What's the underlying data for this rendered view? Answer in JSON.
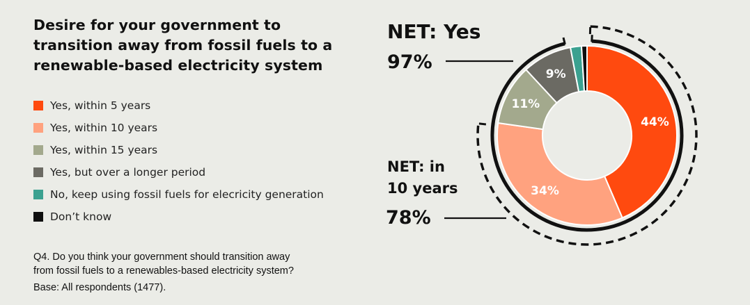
{
  "title_lines": [
    "Desire for your government to",
    "transition away from fossil fuels to a",
    "renewable-based electricity system"
  ],
  "legend": [
    {
      "label": "Yes, within 5 years",
      "color": "#ff4a0f"
    },
    {
      "label": "Yes, within 10 years",
      "color": "#ffa27f"
    },
    {
      "label": "Yes, within 15 years",
      "color": "#a3a98d"
    },
    {
      "label": "Yes, but over a longer period",
      "color": "#6b6a63"
    },
    {
      "label": "No, keep using fossil fuels for elecricity generation",
      "color": "#3ba190"
    },
    {
      "label": "Don’t know",
      "color": "#0f0f0f"
    }
  ],
  "question_lines": [
    "Q4. Do you think your government should transition away",
    "from fossil fuels to a renewables-based electricity system?"
  ],
  "base": "Base: All respondents (1477).",
  "net_yes": {
    "label": "NET: Yes",
    "value": "97%"
  },
  "net_10": {
    "label_lines": [
      "NET: in",
      "10 years"
    ],
    "value": "78%"
  },
  "chart_data": {
    "type": "pie",
    "donut": true,
    "categories": [
      "Yes, within 5 years",
      "Yes, within 10 years",
      "Yes, within 15 years",
      "Yes, but over a longer period",
      "No, keep using fossil fuels for elecricity generation",
      "Don’t know"
    ],
    "values": [
      44,
      34,
      11,
      9,
      2,
      1
    ],
    "data_labels": [
      "44%",
      "34%",
      "11%",
      "9%",
      "",
      ""
    ],
    "colors": [
      "#ff4a0f",
      "#ffa27f",
      "#a3a98d",
      "#6b6a63",
      "#3ba190",
      "#0f0f0f"
    ],
    "net_groups": [
      {
        "name": "NET: Yes",
        "value": 97,
        "covers": [
          0,
          1,
          2,
          3
        ]
      },
      {
        "name": "NET: in 10 years",
        "value": 78,
        "covers": [
          0,
          1
        ]
      }
    ],
    "title": "Desire for your government to transition away from fossil fuels to a renewable-based electricity system"
  }
}
